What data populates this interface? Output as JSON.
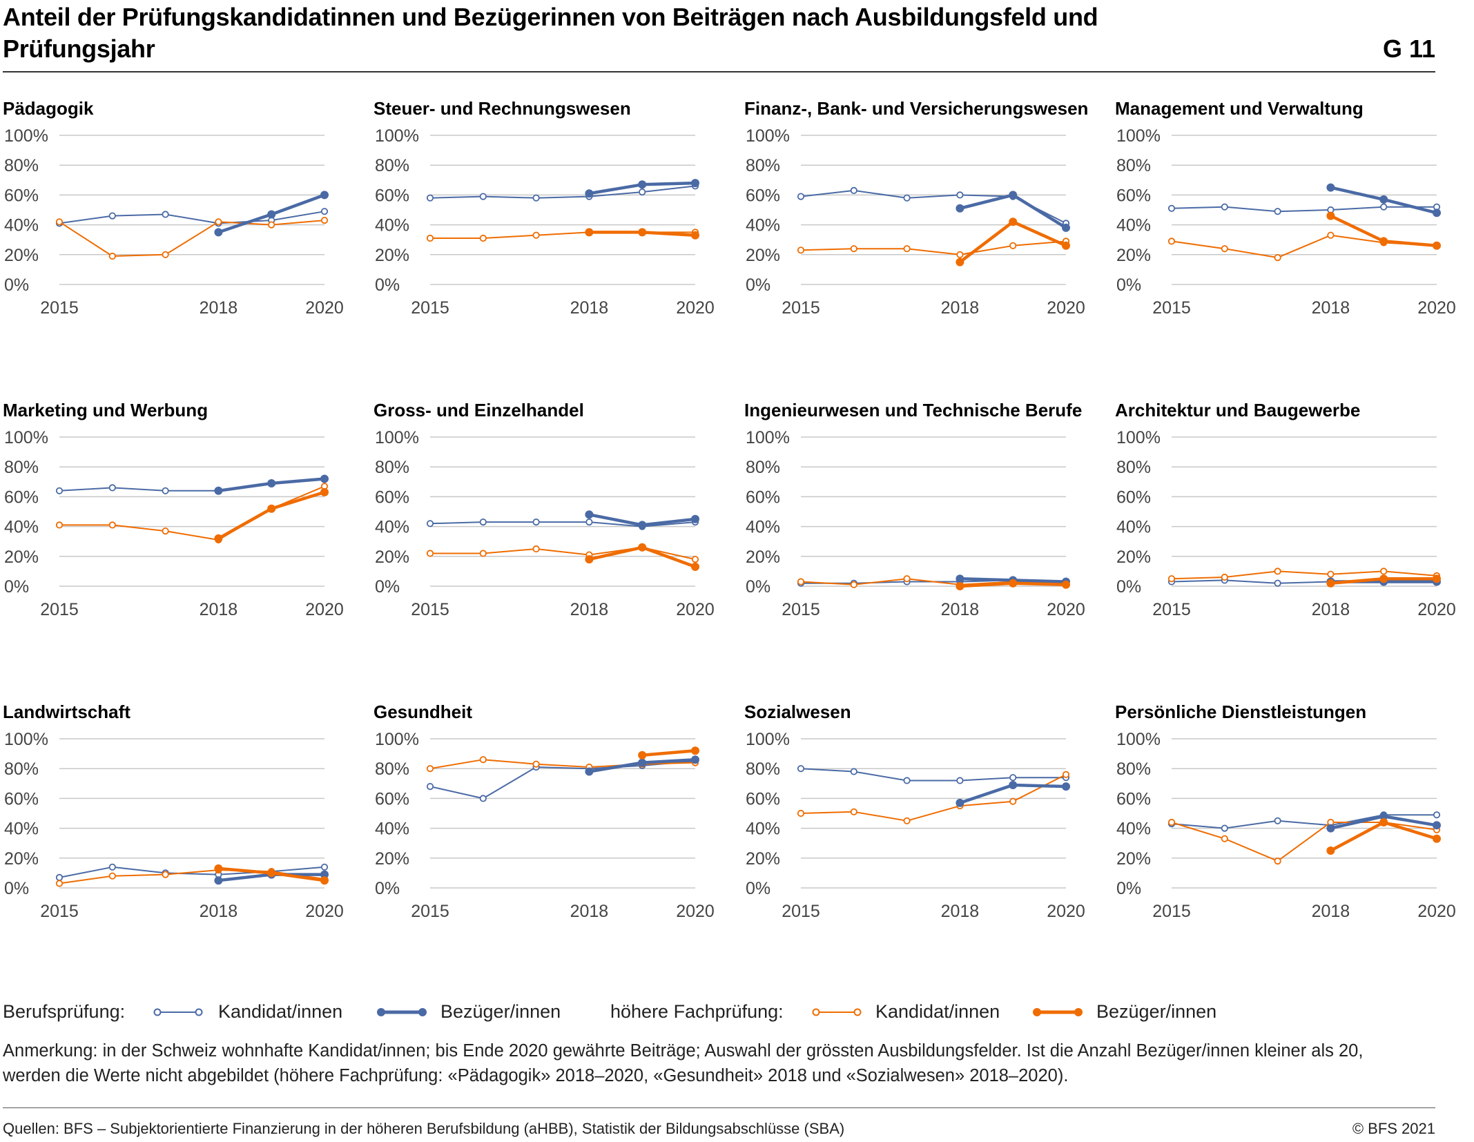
{
  "title": "Anteil der Prüfungskandidatinnen und Bezügerinnen von Beiträgen nach Ausbildungsfeld und Prüfungsjahr",
  "figure_id": "G 11",
  "legend": {
    "bp_label": "Berufsprüfung:",
    "hfp_label": "höhere Fachprüfung:",
    "kandidat": "Kandidat/innen",
    "bezueger": "Bezüger/innen"
  },
  "note": "Anmerkung: in der Schweiz wohnhafte Kandidat/innen; bis Ende 2020 gewährte Beiträge; Auswahl der grössten Ausbildungsfelder. Ist die Anzahl Bezüger/innen kleiner als 20, werden die Werte nicht abgebildet (höhere Fachprüfung: «Pädagogik» 2018–2020, «Gesundheit» 2018 und «Sozialwesen» 2018–2020).",
  "source": "Quellen: BFS – Subjektorientierte Finanzierung in der höheren Berufsbildung (aHBB), Statistik der Bildungsabschlüsse (SBA)",
  "copyright": "© BFS 2021",
  "colors": {
    "berufspruefung": "#4a6aa5",
    "hoehere_fachpruefung": "#ef6c00",
    "grid": "#c8c8c8",
    "tick": "#444444"
  },
  "chart_data": [
    {
      "type": "line",
      "title": "Pädagogik",
      "x": [
        2015,
        2016,
        2017,
        2018,
        2019,
        2020
      ],
      "x_tick_labels": [
        "2015",
        "2018",
        "2020"
      ],
      "y_tick_labels": [
        "0%",
        "20%",
        "40%",
        "60%",
        "80%",
        "100%"
      ],
      "ylim": [
        0,
        100
      ],
      "grid": true,
      "series": [
        {
          "name": "Berufsprüfung Kandidat/innen",
          "values": [
            41,
            46,
            47,
            41,
            43,
            49
          ]
        },
        {
          "name": "Berufsprüfung Bezüger/innen",
          "values": [
            null,
            null,
            null,
            35,
            47,
            60
          ]
        },
        {
          "name": "höhere Fachprüfung Kandidat/innen",
          "values": [
            42,
            19,
            20,
            42,
            40,
            43
          ]
        },
        {
          "name": "höhere Fachprüfung Bezüger/innen",
          "values": [
            null,
            null,
            null,
            null,
            null,
            null
          ]
        }
      ]
    },
    {
      "type": "line",
      "title": "Steuer- und Rechnungswesen",
      "x": [
        2015,
        2016,
        2017,
        2018,
        2019,
        2020
      ],
      "x_tick_labels": [
        "2015",
        "2018",
        "2020"
      ],
      "y_tick_labels": [
        "0%",
        "20%",
        "40%",
        "60%",
        "80%",
        "100%"
      ],
      "ylim": [
        0,
        100
      ],
      "grid": true,
      "series": [
        {
          "name": "Berufsprüfung Kandidat/innen",
          "values": [
            58,
            59,
            58,
            59,
            62,
            66
          ]
        },
        {
          "name": "Berufsprüfung Bezüger/innen",
          "values": [
            null,
            null,
            null,
            61,
            67,
            68
          ]
        },
        {
          "name": "höhere Fachprüfung Kandidat/innen",
          "values": [
            31,
            31,
            33,
            35,
            35,
            35
          ]
        },
        {
          "name": "höhere Fachprüfung Bezüger/innen",
          "values": [
            null,
            null,
            null,
            35,
            35,
            33
          ]
        }
      ]
    },
    {
      "type": "line",
      "title": "Finanz-, Bank- und Versicherungswesen",
      "x": [
        2015,
        2016,
        2017,
        2018,
        2019,
        2020
      ],
      "x_tick_labels": [
        "2015",
        "2018",
        "2020"
      ],
      "y_tick_labels": [
        "0%",
        "20%",
        "40%",
        "60%",
        "80%",
        "100%"
      ],
      "ylim": [
        0,
        100
      ],
      "grid": true,
      "series": [
        {
          "name": "Berufsprüfung Kandidat/innen",
          "values": [
            59,
            63,
            58,
            60,
            59,
            41
          ]
        },
        {
          "name": "Berufsprüfung Bezüger/innen",
          "values": [
            null,
            null,
            null,
            51,
            60,
            38
          ]
        },
        {
          "name": "höhere Fachprüfung Kandidat/innen",
          "values": [
            23,
            24,
            24,
            20,
            26,
            29
          ]
        },
        {
          "name": "höhere Fachprüfung Bezüger/innen",
          "values": [
            null,
            null,
            null,
            15,
            42,
            26
          ]
        }
      ]
    },
    {
      "type": "line",
      "title": "Management und Verwaltung",
      "x": [
        2015,
        2016,
        2017,
        2018,
        2019,
        2020
      ],
      "x_tick_labels": [
        "2015",
        "2018",
        "2020"
      ],
      "y_tick_labels": [
        "0%",
        "20%",
        "40%",
        "60%",
        "80%",
        "100%"
      ],
      "ylim": [
        0,
        100
      ],
      "grid": true,
      "series": [
        {
          "name": "Berufsprüfung Kandidat/innen",
          "values": [
            51,
            52,
            49,
            50,
            52,
            52
          ]
        },
        {
          "name": "Berufsprüfung Bezüger/innen",
          "values": [
            null,
            null,
            null,
            65,
            57,
            48
          ]
        },
        {
          "name": "höhere Fachprüfung Kandidat/innen",
          "values": [
            29,
            24,
            18,
            33,
            28,
            26
          ]
        },
        {
          "name": "höhere Fachprüfung Bezüger/innen",
          "values": [
            null,
            null,
            null,
            46,
            29,
            26
          ]
        }
      ]
    },
    {
      "type": "line",
      "title": "Marketing und Werbung",
      "x": [
        2015,
        2016,
        2017,
        2018,
        2019,
        2020
      ],
      "x_tick_labels": [
        "2015",
        "2018",
        "2020"
      ],
      "y_tick_labels": [
        "0%",
        "20%",
        "40%",
        "60%",
        "80%",
        "100%"
      ],
      "ylim": [
        0,
        100
      ],
      "grid": true,
      "series": [
        {
          "name": "Berufsprüfung Kandidat/innen",
          "values": [
            64,
            66,
            64,
            64,
            69,
            72
          ]
        },
        {
          "name": "Berufsprüfung Bezüger/innen",
          "values": [
            null,
            null,
            null,
            64,
            69,
            72
          ]
        },
        {
          "name": "höhere Fachprüfung Kandidat/innen",
          "values": [
            41,
            41,
            37,
            31,
            52,
            67
          ]
        },
        {
          "name": "höhere Fachprüfung Bezüger/innen",
          "values": [
            null,
            null,
            null,
            32,
            52,
            63
          ]
        }
      ]
    },
    {
      "type": "line",
      "title": "Gross- und Einzelhandel",
      "x": [
        2015,
        2016,
        2017,
        2018,
        2019,
        2020
      ],
      "x_tick_labels": [
        "2015",
        "2018",
        "2020"
      ],
      "y_tick_labels": [
        "0%",
        "20%",
        "40%",
        "60%",
        "80%",
        "100%"
      ],
      "ylim": [
        0,
        100
      ],
      "grid": true,
      "series": [
        {
          "name": "Berufsprüfung Kandidat/innen",
          "values": [
            42,
            43,
            43,
            43,
            40,
            43
          ]
        },
        {
          "name": "Berufsprüfung Bezüger/innen",
          "values": [
            null,
            null,
            null,
            48,
            41,
            45
          ]
        },
        {
          "name": "höhere Fachprüfung Kandidat/innen",
          "values": [
            22,
            22,
            25,
            21,
            26,
            18
          ]
        },
        {
          "name": "höhere Fachprüfung Bezüger/innen",
          "values": [
            null,
            null,
            null,
            18,
            26,
            13
          ]
        }
      ]
    },
    {
      "type": "line",
      "title": "Ingenieurwesen und Technische Berufe",
      "x": [
        2015,
        2016,
        2017,
        2018,
        2019,
        2020
      ],
      "x_tick_labels": [
        "2015",
        "2018",
        "2020"
      ],
      "y_tick_labels": [
        "0%",
        "20%",
        "40%",
        "60%",
        "80%",
        "100%"
      ],
      "ylim": [
        0,
        100
      ],
      "grid": true,
      "series": [
        {
          "name": "Berufsprüfung Kandidat/innen",
          "values": [
            2,
            2,
            3,
            3,
            4,
            3
          ]
        },
        {
          "name": "Berufsprüfung Bezüger/innen",
          "values": [
            null,
            null,
            null,
            5,
            4,
            3
          ]
        },
        {
          "name": "höhere Fachprüfung Kandidat/innen",
          "values": [
            3,
            1,
            5,
            1,
            3,
            2
          ]
        },
        {
          "name": "höhere Fachprüfung Bezüger/innen",
          "values": [
            null,
            null,
            null,
            0,
            2,
            1
          ]
        }
      ]
    },
    {
      "type": "line",
      "title": "Architektur und Baugewerbe",
      "x": [
        2015,
        2016,
        2017,
        2018,
        2019,
        2020
      ],
      "x_tick_labels": [
        "2015",
        "2018",
        "2020"
      ],
      "y_tick_labels": [
        "0%",
        "20%",
        "40%",
        "60%",
        "80%",
        "100%"
      ],
      "ylim": [
        0,
        100
      ],
      "grid": true,
      "series": [
        {
          "name": "Berufsprüfung Kandidat/innen",
          "values": [
            3,
            4,
            2,
            3,
            4,
            4
          ]
        },
        {
          "name": "Berufsprüfung Bezüger/innen",
          "values": [
            null,
            null,
            null,
            3,
            3,
            3
          ]
        },
        {
          "name": "höhere Fachprüfung Kandidat/innen",
          "values": [
            5,
            6,
            10,
            8,
            10,
            7
          ]
        },
        {
          "name": "höhere Fachprüfung Bezüger/innen",
          "values": [
            null,
            null,
            null,
            2,
            5,
            5
          ]
        }
      ]
    },
    {
      "type": "line",
      "title": "Landwirtschaft",
      "x": [
        2015,
        2016,
        2017,
        2018,
        2019,
        2020
      ],
      "x_tick_labels": [
        "2015",
        "2018",
        "2020"
      ],
      "y_tick_labels": [
        "0%",
        "20%",
        "40%",
        "60%",
        "80%",
        "100%"
      ],
      "ylim": [
        0,
        100
      ],
      "grid": true,
      "series": [
        {
          "name": "Berufsprüfung Kandidat/innen",
          "values": [
            7,
            14,
            10,
            9,
            11,
            14
          ]
        },
        {
          "name": "Berufsprüfung Bezüger/innen",
          "values": [
            null,
            null,
            null,
            5,
            9,
            9
          ]
        },
        {
          "name": "höhere Fachprüfung Kandidat/innen",
          "values": [
            3,
            8,
            9,
            12,
            11,
            6
          ]
        },
        {
          "name": "höhere Fachprüfung Bezüger/innen",
          "values": [
            null,
            null,
            null,
            13,
            10,
            5
          ]
        }
      ]
    },
    {
      "type": "line",
      "title": "Gesundheit",
      "x": [
        2015,
        2016,
        2017,
        2018,
        2019,
        2020
      ],
      "x_tick_labels": [
        "2015",
        "2018",
        "2020"
      ],
      "y_tick_labels": [
        "0%",
        "20%",
        "40%",
        "60%",
        "80%",
        "100%"
      ],
      "ylim": [
        0,
        100
      ],
      "grid": true,
      "series": [
        {
          "name": "Berufsprüfung Kandidat/innen",
          "values": [
            68,
            60,
            81,
            80,
            82,
            85
          ]
        },
        {
          "name": "Berufsprüfung Bezüger/innen",
          "values": [
            null,
            null,
            null,
            78,
            84,
            86
          ]
        },
        {
          "name": "höhere Fachprüfung Kandidat/innen",
          "values": [
            80,
            86,
            83,
            81,
            83,
            84
          ]
        },
        {
          "name": "höhere Fachprüfung Bezüger/innen",
          "values": [
            null,
            null,
            null,
            null,
            89,
            92
          ]
        }
      ]
    },
    {
      "type": "line",
      "title": "Sozialwesen",
      "x": [
        2015,
        2016,
        2017,
        2018,
        2019,
        2020
      ],
      "x_tick_labels": [
        "2015",
        "2018",
        "2020"
      ],
      "y_tick_labels": [
        "0%",
        "20%",
        "40%",
        "60%",
        "80%",
        "100%"
      ],
      "ylim": [
        0,
        100
      ],
      "grid": true,
      "series": [
        {
          "name": "Berufsprüfung Kandidat/innen",
          "values": [
            80,
            78,
            72,
            72,
            74,
            74
          ]
        },
        {
          "name": "Berufsprüfung Bezüger/innen",
          "values": [
            null,
            null,
            null,
            57,
            69,
            68
          ]
        },
        {
          "name": "höhere Fachprüfung Kandidat/innen",
          "values": [
            50,
            51,
            45,
            55,
            58,
            76
          ]
        },
        {
          "name": "höhere Fachprüfung Bezüger/innen",
          "values": [
            null,
            null,
            null,
            null,
            null,
            null
          ]
        }
      ]
    },
    {
      "type": "line",
      "title": "Persönliche Dienstleistungen",
      "x": [
        2015,
        2016,
        2017,
        2018,
        2019,
        2020
      ],
      "x_tick_labels": [
        "2015",
        "2018",
        "2020"
      ],
      "y_tick_labels": [
        "0%",
        "20%",
        "40%",
        "60%",
        "80%",
        "100%"
      ],
      "ylim": [
        0,
        100
      ],
      "grid": true,
      "series": [
        {
          "name": "Berufsprüfung Kandidat/innen",
          "values": [
            43,
            40,
            45,
            42,
            49,
            49
          ]
        },
        {
          "name": "Berufsprüfung Bezüger/innen",
          "values": [
            null,
            null,
            null,
            40,
            48,
            42
          ]
        },
        {
          "name": "höhere Fachprüfung Kandidat/innen",
          "values": [
            44,
            33,
            18,
            44,
            44,
            39
          ]
        },
        {
          "name": "höhere Fachprüfung Bezüger/innen",
          "values": [
            null,
            null,
            null,
            25,
            44,
            33
          ]
        }
      ]
    }
  ]
}
